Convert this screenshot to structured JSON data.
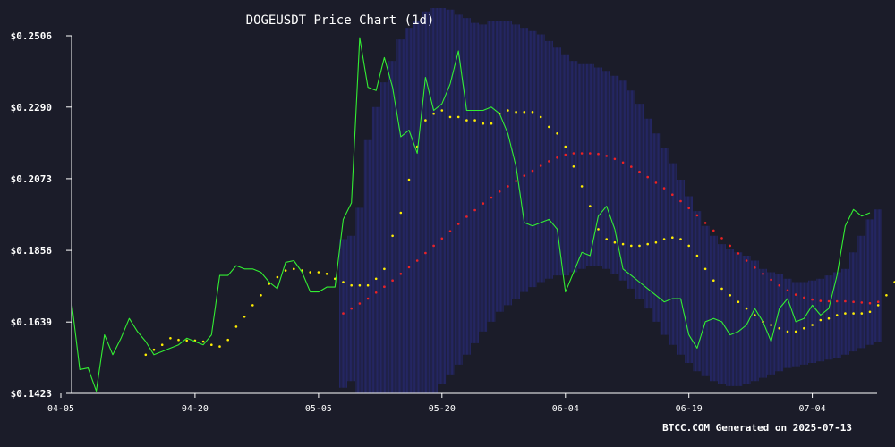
{
  "page": {
    "background": "#1b1c29",
    "footer_text": "BTCC.COM Generated on 2025-07-13"
  },
  "chart_data": {
    "type": "line",
    "title": "DOGEUSDT Price Chart (1d)",
    "xlabel": "",
    "ylabel": "",
    "ylim": [
      0.1423,
      0.2506
    ],
    "yticks": [
      "$0.2506",
      "$0.2290",
      "$0.2073",
      "$0.1856",
      "$0.1639",
      "$0.1423"
    ],
    "ytick_values": [
      0.2506,
      0.229,
      0.2073,
      0.1856,
      0.1639,
      0.1423
    ],
    "xticks": [
      "04-05",
      "04-20",
      "05-05",
      "05-20",
      "06-04",
      "06-19",
      "07-04"
    ],
    "x_start": "04-05",
    "x_end": "07-13",
    "grid": false,
    "legend": "none",
    "colors": {
      "price": "#33ee33",
      "ma_short": "#ffee00",
      "ma_long": "#ee2222",
      "band": "#2a2e8a"
    },
    "series": [
      {
        "kind": "price",
        "values": [
          0.17,
          0.1495,
          0.15,
          0.143,
          0.16,
          0.154,
          0.159,
          0.165,
          0.161,
          0.158,
          0.154,
          0.155,
          0.156,
          0.157,
          0.159,
          0.158,
          0.157,
          0.16,
          0.178,
          0.178,
          0.181,
          0.18,
          0.18,
          0.179,
          0.176,
          0.174,
          0.182,
          0.1825,
          0.179,
          0.173,
          0.173,
          0.1745,
          0.1745,
          0.195,
          0.2,
          0.25,
          0.235,
          0.234,
          0.244,
          0.235,
          0.22,
          0.222,
          0.215,
          0.238,
          0.228,
          0.23,
          0.236,
          0.246,
          0.228,
          0.228,
          0.228,
          0.229,
          0.227,
          0.221,
          0.211,
          0.194,
          0.193,
          0.194,
          0.195,
          0.192,
          0.173,
          0.179,
          0.185,
          0.184,
          0.196,
          0.199,
          0.192,
          0.18,
          0.178,
          0.176,
          0.174,
          0.172,
          0.17,
          0.171,
          0.171,
          0.16,
          0.156,
          0.164,
          0.165,
          0.164,
          0.16,
          0.161,
          0.163,
          0.168,
          0.164,
          0.158,
          0.168,
          0.171,
          0.164,
          0.165,
          0.169,
          0.166,
          0.168,
          0.178,
          0.193,
          0.198,
          0.196,
          0.197
        ]
      },
      {
        "kind": "ma_short",
        "start_index": 9,
        "values": [
          0.154,
          0.1555,
          0.157,
          0.159,
          0.1585,
          0.1583,
          0.1583,
          0.158,
          0.157,
          0.1565,
          0.1585,
          0.1625,
          0.1655,
          0.169,
          0.172,
          0.1755,
          0.1775,
          0.1795,
          0.18,
          0.1795,
          0.179,
          0.179,
          0.1785,
          0.177,
          0.176,
          0.175,
          0.175,
          0.175,
          0.177,
          0.18,
          0.19,
          0.197,
          0.207,
          0.217,
          0.225,
          0.227,
          0.228,
          0.226,
          0.226,
          0.225,
          0.225,
          0.224,
          0.224,
          0.227,
          0.228,
          0.2275,
          0.2275,
          0.2275,
          0.226,
          0.223,
          0.221,
          0.217,
          0.211,
          0.205,
          0.199,
          0.192,
          0.189,
          0.188,
          0.1875,
          0.187,
          0.187,
          0.1875,
          0.188,
          0.189,
          0.1895,
          0.189,
          0.187,
          0.184,
          0.18,
          0.1765,
          0.174,
          0.172,
          0.17,
          0.168,
          0.166,
          0.164,
          0.163,
          0.162,
          0.161,
          0.161,
          0.162,
          0.163,
          0.1645,
          0.165,
          0.166,
          0.1665,
          0.1665,
          0.1665,
          0.167,
          0.169,
          0.172,
          0.176,
          0.181,
          0.185,
          0.188
        ]
      },
      {
        "kind": "ma_long",
        "start_index": 33,
        "values": [
          0.1665,
          0.168,
          0.1695,
          0.171,
          0.1728,
          0.1746,
          0.1765,
          0.1785,
          0.1805,
          0.1825,
          0.1848,
          0.187,
          0.1892,
          0.1914,
          0.1936,
          0.1958,
          0.1978,
          0.1998,
          0.2016,
          0.2034,
          0.205,
          0.2066,
          0.2082,
          0.2097,
          0.2112,
          0.2126,
          0.2137,
          0.2146,
          0.215,
          0.215,
          0.215,
          0.2148,
          0.2142,
          0.2133,
          0.2122,
          0.2109,
          0.2094,
          0.2078,
          0.2061,
          0.2044,
          0.2025,
          0.2005,
          0.1984,
          0.1962,
          0.1939,
          0.1916,
          0.1893,
          0.187,
          0.1847,
          0.1825,
          0.1804,
          0.1785,
          0.1767,
          0.175,
          0.1735,
          0.1722,
          0.1713,
          0.1707,
          0.1703,
          0.1702,
          0.1702,
          0.1702,
          0.17,
          0.1698,
          0.1696,
          0.17
        ]
      },
      {
        "kind": "band",
        "start_index": 33,
        "upper": [
          0.189,
          0.19,
          0.1985,
          0.219,
          0.229,
          0.2365,
          0.243,
          0.2495,
          0.253,
          0.255,
          0.258,
          0.259,
          0.259,
          0.2585,
          0.257,
          0.256,
          0.2545,
          0.254,
          0.255,
          0.255,
          0.255,
          0.254,
          0.253,
          0.252,
          0.251,
          0.249,
          0.247,
          0.245,
          0.243,
          0.242,
          0.242,
          0.241,
          0.24,
          0.2385,
          0.237,
          0.234,
          0.23,
          0.2255,
          0.221,
          0.2165,
          0.212,
          0.207,
          0.202,
          0.1975,
          0.193,
          0.19,
          0.1875,
          0.186,
          0.185,
          0.184,
          0.1825,
          0.18,
          0.179,
          0.1785,
          0.177,
          0.176,
          0.176,
          0.1765,
          0.177,
          0.178,
          0.179,
          0.18,
          0.185,
          0.19,
          0.195,
          0.198
        ],
        "lower": [
          0.144,
          0.146,
          0.142,
          0.142,
          0.142,
          0.142,
          0.142,
          0.142,
          0.142,
          0.142,
          0.1423,
          0.1423,
          0.145,
          0.148,
          0.151,
          0.154,
          0.1575,
          0.161,
          0.164,
          0.167,
          0.169,
          0.171,
          0.173,
          0.1745,
          0.176,
          0.177,
          0.178,
          0.178,
          0.179,
          0.18,
          0.181,
          0.181,
          0.18,
          0.1785,
          0.1765,
          0.174,
          0.171,
          0.168,
          0.164,
          0.16,
          0.157,
          0.154,
          0.1515,
          0.149,
          0.1475,
          0.146,
          0.145,
          0.1445,
          0.1445,
          0.145,
          0.146,
          0.147,
          0.148,
          0.149,
          0.15,
          0.1505,
          0.151,
          0.1515,
          0.152,
          0.1525,
          0.153,
          0.154,
          0.155,
          0.156,
          0.157,
          0.158
        ]
      }
    ]
  }
}
